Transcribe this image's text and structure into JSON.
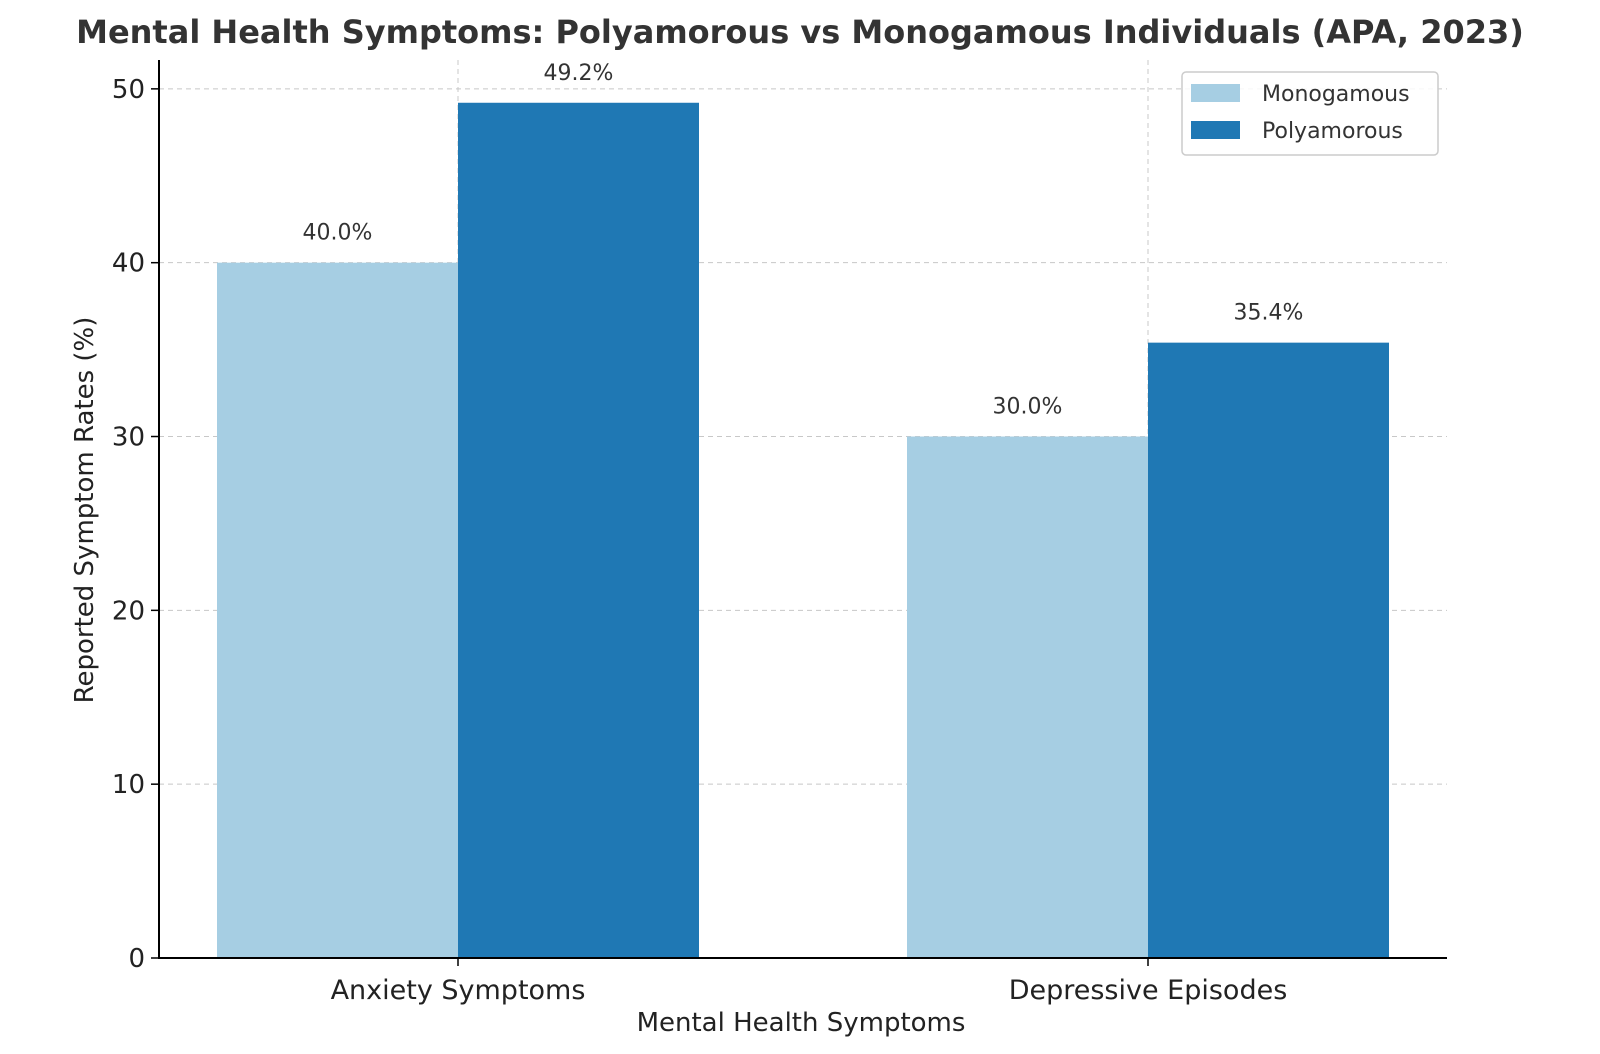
{
  "chart_data": {
    "type": "bar",
    "title": "Mental Health Symptoms: Polyamorous vs Monogamous Individuals (APA, 2023)",
    "xlabel": "Mental Health Symptoms",
    "ylabel": "Reported Symptom Rates (%)",
    "categories": [
      "Anxiety Symptoms",
      "Depressive Episodes"
    ],
    "series": [
      {
        "name": "Monogamous",
        "color": "#a6cee3",
        "values": [
          40.0,
          30.0
        ],
        "labels": [
          "40.0%",
          "30.0%"
        ]
      },
      {
        "name": "Polyamorous",
        "color": "#1f78b4",
        "values": [
          49.2,
          35.4
        ],
        "labels": [
          "49.2%",
          "35.4%"
        ]
      }
    ],
    "yticks": [
      0,
      10,
      20,
      30,
      40,
      50
    ],
    "ytick_labels": [
      "0",
      "10",
      "20",
      "30",
      "40",
      "50"
    ],
    "ylim": [
      0,
      51.66
    ],
    "grid": true,
    "legend_position": "top-right"
  }
}
